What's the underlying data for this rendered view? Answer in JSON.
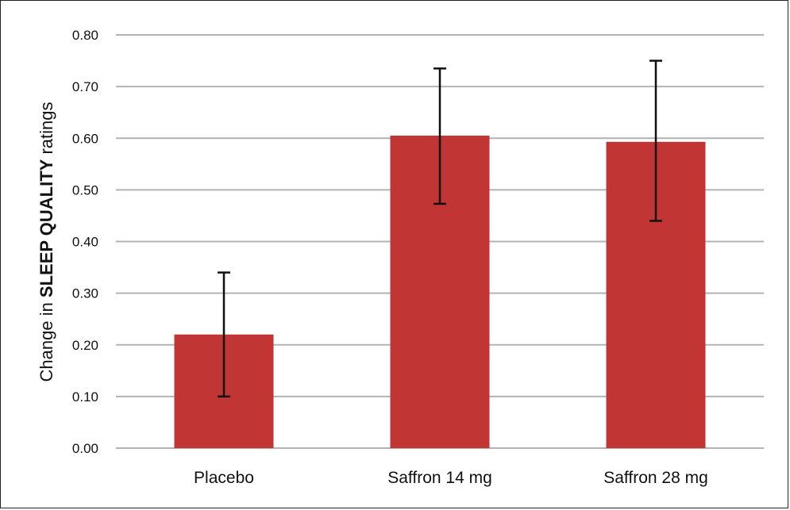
{
  "chart_data": {
    "type": "bar",
    "categories": [
      "Placebo",
      "Saffron 14 mg",
      "Saffron 28 mg"
    ],
    "values": [
      0.22,
      0.605,
      0.593
    ],
    "error_bars": [
      {
        "low": 0.1,
        "high": 0.34
      },
      {
        "low": 0.473,
        "high": 0.735
      },
      {
        "low": 0.44,
        "high": 0.75
      }
    ],
    "title": "",
    "xlabel": "",
    "ylabel": {
      "prefix": "Change in ",
      "emphasis": "SLEEP QUALITY",
      "suffix": " ratings"
    },
    "ylim": [
      0,
      0.8
    ],
    "yticks": [
      "0.00",
      "0.10",
      "0.20",
      "0.30",
      "0.40",
      "0.50",
      "0.60",
      "0.70",
      "0.80"
    ],
    "grid": true,
    "legend": "none",
    "colors": {
      "bar": "#c13634",
      "grid": "#b3b3b3",
      "error_bar": "#111111",
      "frame": "#222222"
    }
  }
}
